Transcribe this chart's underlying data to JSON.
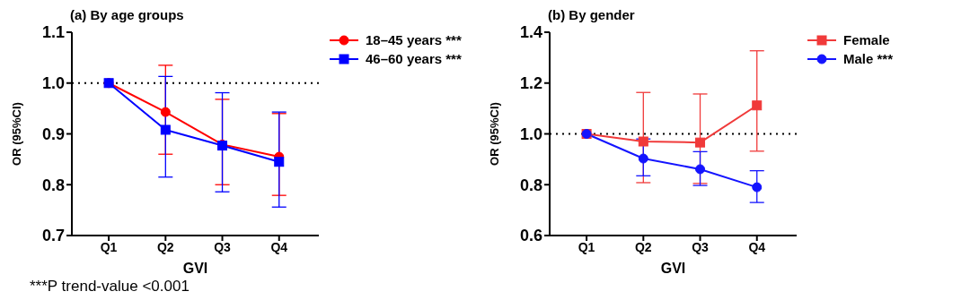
{
  "chart_data": [
    {
      "type": "line",
      "title": "(a) By age groups",
      "xlabel": "GVI",
      "ylabel": "OR (95%CI)",
      "categories": [
        "Q1",
        "Q2",
        "Q3",
        "Q4"
      ],
      "ylim": [
        0.7,
        1.1
      ],
      "yticks": [
        {
          "value": 0.7,
          "label": "0.7"
        },
        {
          "value": 0.8,
          "label": "0.8"
        },
        {
          "value": 0.9,
          "label": "0.9"
        },
        {
          "value": 1.0,
          "label": "1.0"
        },
        {
          "value": 1.1,
          "label": "1.1"
        }
      ],
      "legend": "top right",
      "ref_lines": [
        {
          "axis": "y",
          "value": 1.0,
          "line_style": "dotted",
          "color": "#000000"
        }
      ],
      "annotations": [
        "***P trend-value <0.001"
      ],
      "series": [
        {
          "name": "18–45 years ***",
          "color": "#ff0000",
          "marker": "circle",
          "values": [
            1.0,
            0.943,
            0.879,
            0.855
          ],
          "errors": [
            null,
            [
              0.86,
              1.035
            ],
            [
              0.8,
              0.968
            ],
            [
              0.779,
              0.94
            ]
          ]
        },
        {
          "name": "46–60 years ***",
          "color": "#0000ff",
          "marker": "square",
          "values": [
            1.0,
            0.908,
            0.877,
            0.845
          ],
          "errors": [
            null,
            [
              0.815,
              1.013
            ],
            [
              0.786,
              0.981
            ],
            [
              0.756,
              0.943
            ]
          ]
        }
      ]
    },
    {
      "type": "line",
      "title": "(b) By gender",
      "xlabel": "GVI",
      "ylabel": "OR (95%CI)",
      "categories": [
        "Q1",
        "Q2",
        "Q3",
        "Q4"
      ],
      "ylim": [
        0.6,
        1.4
      ],
      "yticks": [
        {
          "value": 0.6,
          "label": "0.6"
        },
        {
          "value": 0.8,
          "label": "0.8"
        },
        {
          "value": 1.0,
          "label": "1.0"
        },
        {
          "value": 1.2,
          "label": "1.2"
        },
        {
          "value": 1.4,
          "label": "1.4"
        }
      ],
      "legend": "top right",
      "ref_lines": [
        {
          "axis": "y",
          "value": 1.0,
          "line_style": "dotted",
          "color": "#000000"
        }
      ],
      "series": [
        {
          "name": "Female",
          "color": "#f03a3a",
          "marker": "square",
          "values": [
            1.0,
            0.97,
            0.966,
            1.112
          ],
          "errors": [
            null,
            [
              0.808,
              1.163
            ],
            [
              0.805,
              1.157
            ],
            [
              0.932,
              1.327
            ]
          ]
        },
        {
          "name": "Male ***",
          "color": "#1414ff",
          "marker": "circle",
          "values": [
            1.0,
            0.903,
            0.861,
            0.79
          ],
          "errors": [
            null,
            [
              0.835,
              0.98
            ],
            [
              0.797,
              0.93
            ],
            [
              0.73,
              0.855
            ]
          ]
        }
      ]
    }
  ]
}
